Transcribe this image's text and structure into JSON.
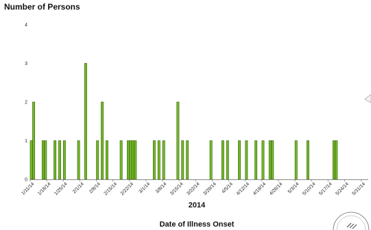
{
  "chart_data": {
    "type": "bar",
    "ylabel": "Number of Persons",
    "xlabel": "Date of Illness Onset",
    "year_label": "2014",
    "ylim": [
      0,
      4
    ],
    "yticks": [
      0,
      1,
      2,
      3,
      4
    ],
    "x_range": [
      "2014-01-11",
      "2014-06-03"
    ],
    "xtick_labels": [
      "1/11/14",
      "1/18/14",
      "1/25/14",
      "2/1/14",
      "2/8/14",
      "2/15/14",
      "2/22/14",
      "3/1/14",
      "3/8/14",
      "3/15/14",
      "3/22/14",
      "3/29/14",
      "4/5/14",
      "4/12/14",
      "4/19/14",
      "4/26/14",
      "5/3/14",
      "5/10/14",
      "5/17/14",
      "5/24/14",
      "5/31/14"
    ],
    "xtick_dates": [
      "2014-01-11",
      "2014-01-18",
      "2014-01-25",
      "2014-02-01",
      "2014-02-08",
      "2014-02-15",
      "2014-02-22",
      "2014-03-01",
      "2014-03-08",
      "2014-03-15",
      "2014-03-22",
      "2014-03-29",
      "2014-04-05",
      "2014-04-12",
      "2014-04-19",
      "2014-04-26",
      "2014-05-03",
      "2014-05-10",
      "2014-05-17",
      "2014-05-24",
      "2014-05-31"
    ],
    "grid": false,
    "bar_color": "#76b82a",
    "bar_edge_color": "#2f5f0a",
    "bars": [
      {
        "date": "2014-01-11",
        "value": 1
      },
      {
        "date": "2014-01-12",
        "value": 2
      },
      {
        "date": "2014-01-16",
        "value": 1
      },
      {
        "date": "2014-01-17",
        "value": 1
      },
      {
        "date": "2014-01-21",
        "value": 1
      },
      {
        "date": "2014-01-23",
        "value": 1
      },
      {
        "date": "2014-01-25",
        "value": 1
      },
      {
        "date": "2014-01-31",
        "value": 1
      },
      {
        "date": "2014-02-03",
        "value": 3
      },
      {
        "date": "2014-02-08",
        "value": 1
      },
      {
        "date": "2014-02-10",
        "value": 2
      },
      {
        "date": "2014-02-12",
        "value": 1
      },
      {
        "date": "2014-02-18",
        "value": 1
      },
      {
        "date": "2014-02-21",
        "value": 1
      },
      {
        "date": "2014-02-22",
        "value": 1
      },
      {
        "date": "2014-02-23",
        "value": 1
      },
      {
        "date": "2014-02-24",
        "value": 1
      },
      {
        "date": "2014-03-04",
        "value": 1
      },
      {
        "date": "2014-03-06",
        "value": 1
      },
      {
        "date": "2014-03-08",
        "value": 1
      },
      {
        "date": "2014-03-14",
        "value": 2
      },
      {
        "date": "2014-03-16",
        "value": 1
      },
      {
        "date": "2014-03-18",
        "value": 1
      },
      {
        "date": "2014-03-28",
        "value": 1
      },
      {
        "date": "2014-04-02",
        "value": 1
      },
      {
        "date": "2014-04-04",
        "value": 1
      },
      {
        "date": "2014-04-09",
        "value": 1
      },
      {
        "date": "2014-04-12",
        "value": 1
      },
      {
        "date": "2014-04-16",
        "value": 1
      },
      {
        "date": "2014-04-19",
        "value": 1
      },
      {
        "date": "2014-04-22",
        "value": 1
      },
      {
        "date": "2014-04-23",
        "value": 1
      },
      {
        "date": "2014-05-03",
        "value": 1
      },
      {
        "date": "2014-05-08",
        "value": 1
      },
      {
        "date": "2014-05-19",
        "value": 1
      },
      {
        "date": "2014-05-20",
        "value": 1
      }
    ]
  }
}
